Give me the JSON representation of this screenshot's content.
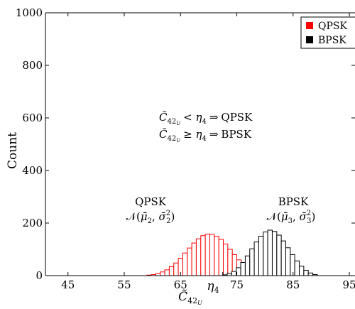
{
  "chart_data": {
    "type": "histogram",
    "xlabel": "C̃",
    "xlabel_sub": "42",
    "xlabel_subsub": "U",
    "ylabel": "Count",
    "xlim": [
      41,
      96
    ],
    "ylim": [
      0,
      1000
    ],
    "xticks": [
      45,
      55,
      65,
      75,
      85,
      95
    ],
    "yticks": [
      0,
      200,
      400,
      600,
      800,
      1000
    ],
    "threshold": {
      "label": "η",
      "label_sub": "4",
      "x": 72.5
    },
    "bin_width": 0.8,
    "series": [
      {
        "name": "QPSK",
        "color": "#ff0000",
        "bin_start": 59.0,
        "counts": [
          2,
          4,
          8,
          14,
          22,
          34,
          48,
          66,
          86,
          105,
          124,
          140,
          152,
          158,
          157,
          150,
          138,
          120,
          100,
          80,
          60,
          42,
          27,
          16,
          9,
          5,
          2
        ]
      },
      {
        "name": "BPSK",
        "color": "#000000",
        "bin_start": 72.5,
        "counts": [
          3,
          8,
          16,
          30,
          50,
          75,
          102,
          128,
          150,
          166,
          173,
          168,
          154,
          132,
          106,
          80,
          56,
          36,
          20,
          10,
          4
        ]
      }
    ],
    "annotations": {
      "rule1": {
        "C": "C̃",
        "sub": "42",
        "subsub": "U",
        "op": "< ",
        "eta": "η",
        "eta_sub": "4",
        "arrow": "⇒",
        "result": "QPSK"
      },
      "rule2": {
        "C": "C̃",
        "sub": "42",
        "subsub": "U",
        "op": "≥ ",
        "eta": "η",
        "eta_sub": "4",
        "arrow": "⇒",
        "result": "BPSK"
      },
      "qpsk_title": "QPSK",
      "qpsk_dist": {
        "N": "𝒩",
        "mu": "μ̄",
        "mu_sub": "2",
        "sigma": "σ̄",
        "sigma_sub": "2",
        "sigma_sup": "2"
      },
      "bpsk_title": "BPSK",
      "bpsk_dist": {
        "N": "𝒩",
        "mu": "μ̄",
        "mu_sub": "3",
        "sigma": "σ̄",
        "sigma_sub": "3",
        "sigma_sup": "2"
      }
    },
    "legend": {
      "position": "top-right",
      "items": [
        {
          "label": "QPSK",
          "color": "#ff0000"
        },
        {
          "label": "BPSK",
          "color": "#000000"
        }
      ]
    }
  }
}
